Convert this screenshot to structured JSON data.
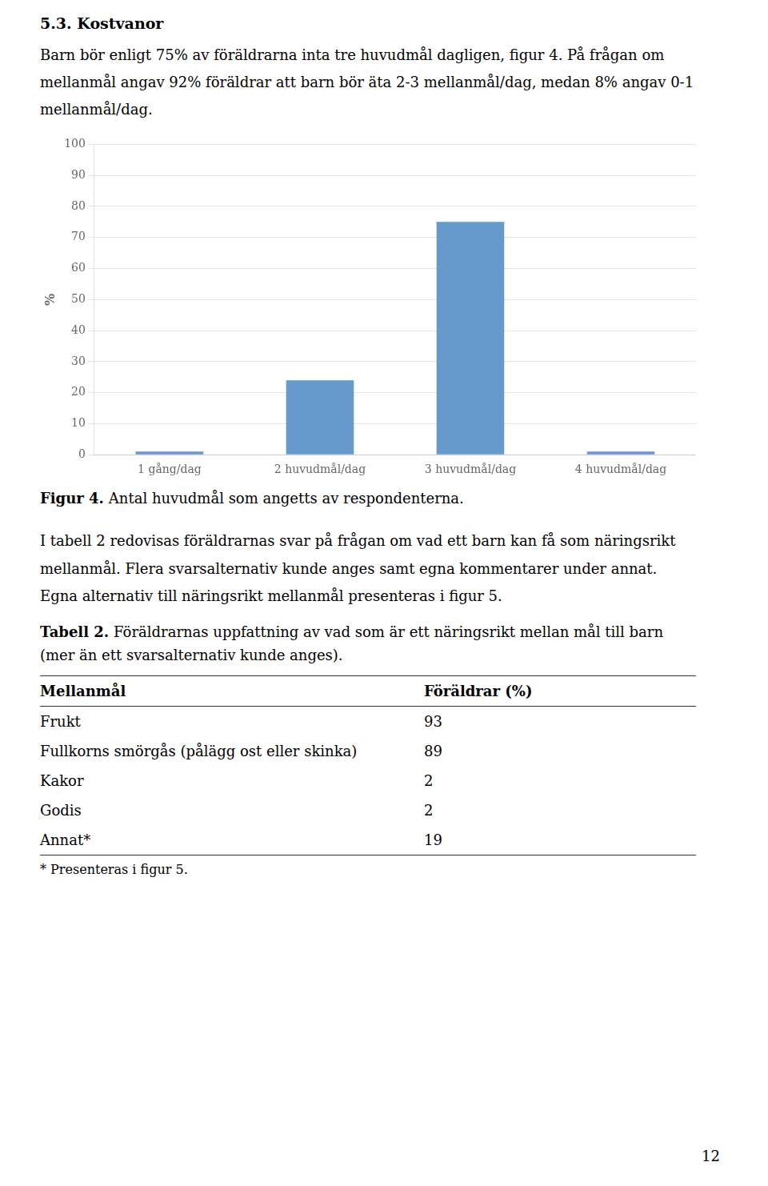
{
  "page_title": "5.3. Kostvanor",
  "paragraphs_before": [
    "Barn bör enligt 75% av föräldrarna inta tre huvudmål dagligen, figur 4. På frågan om mellanmål angav 92% föräldrar att barn bör äta 2-3 mellanmål/dag, medan 8% angav 0-1 mellanmål/dag."
  ],
  "chart_data": {
    "type": "bar",
    "y_label": "%",
    "categories": [
      "1 gång/dag",
      "2 huvudmål/dag",
      "3 huvudmål/dag",
      "4 huvudmål/dag"
    ],
    "values": [
      1,
      24,
      75,
      1
    ],
    "color": "#6699CC",
    "ylim": [
      0,
      100
    ],
    "yticks": [
      0,
      10,
      20,
      30,
      40,
      50,
      60,
      70,
      80,
      90,
      100
    ],
    "grid": true
  },
  "figure_label": "Figur 4.",
  "figure_caption": "Antal huvudmål som angetts av respondenterna.",
  "paragraphs_after": [
    "I tabell 2 redovisas föräldrarnas svar på frågan om vad ett barn kan få som näringsrikt mellanmål. Flera svarsalternativ kunde anges samt egna kommentarer under annat. Egna alternativ till näringsrikt mellanmål presenteras i figur 5."
  ],
  "table": {
    "label": "Tabell 2.",
    "caption": "Föräldrarnas uppfattning av vad som är ett näringsrikt mellan mål till barn (mer än ett svarsalternativ kunde anges).",
    "columns": [
      "Mellanmål",
      "Föräldrar (%)"
    ],
    "rows": [
      [
        "Frukt",
        "93"
      ],
      [
        "Fullkorns smörgås (pålägg ost eller skinka)",
        "89"
      ],
      [
        "Kakor",
        "2"
      ],
      [
        "Godis",
        "2"
      ],
      [
        "Annat*",
        "19"
      ]
    ],
    "footnote": "* Presenteras i figur 5."
  },
  "page_number": "12"
}
